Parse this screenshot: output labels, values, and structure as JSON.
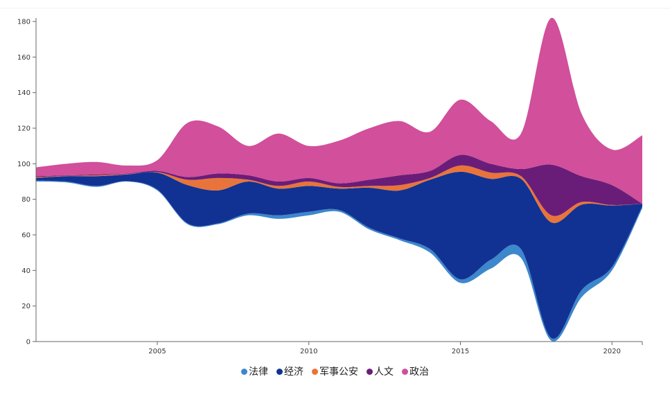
{
  "chart_data": {
    "type": "area",
    "subtype": "streamgraph",
    "title": "",
    "xlabel": "",
    "ylabel": "",
    "x": [
      2001,
      2002,
      2003,
      2004,
      2005,
      2006,
      2007,
      2008,
      2009,
      2010,
      2011,
      2012,
      2013,
      2014,
      2015,
      2016,
      2017,
      2018,
      2019,
      2020,
      2021
    ],
    "xlim": [
      2001,
      2021
    ],
    "ylim": [
      0,
      180
    ],
    "x_ticks": [
      "2005",
      "2010",
      "2015",
      "2020"
    ],
    "x_tick_values": [
      2005,
      2010,
      2015,
      2020
    ],
    "y_ticks": [
      "0",
      "20",
      "40",
      "60",
      "80",
      "100",
      "120",
      "140",
      "160",
      "180"
    ],
    "y_tick_values": [
      0,
      20,
      40,
      60,
      80,
      100,
      120,
      140,
      160,
      180
    ],
    "baseline": [
      90,
      89.5,
      87,
      90,
      85,
      66,
      66,
      71,
      69,
      71,
      73,
      63,
      57,
      50,
      33,
      41,
      47,
      0.5,
      25,
      40,
      75
    ],
    "series": [
      {
        "name": "法律",
        "color": "#3d87cc",
        "values": [
          0.5,
          0.5,
          0.5,
          0.2,
          0.5,
          0.5,
          0.5,
          1,
          2,
          2,
          1,
          1,
          1,
          2,
          2,
          5,
          5,
          1.5,
          4,
          2,
          1
        ]
      },
      {
        "name": "经济",
        "color": "#113293",
        "values": [
          1.5,
          3,
          5.5,
          3.8,
          9.5,
          21.5,
          18.5,
          18,
          15,
          14.5,
          12,
          22.5,
          27,
          39,
          60.5,
          45.5,
          39.5,
          65,
          48,
          34.5,
          1.5
        ]
      },
      {
        "name": "军事公安",
        "color": "#e8743b",
        "values": [
          0.5,
          0.2,
          0.5,
          0.2,
          0.3,
          3,
          7,
          1,
          1.5,
          2.5,
          1,
          1,
          3,
          1,
          3.5,
          3.5,
          1.5,
          4,
          1.5,
          0.3,
          0
        ]
      },
      {
        "name": "人文",
        "color": "#6a1d78",
        "values": [
          0.5,
          0.3,
          0.5,
          0.3,
          0.7,
          1.5,
          2.5,
          2.5,
          2.5,
          2,
          2,
          3.5,
          5.5,
          4,
          6,
          5,
          4,
          28.5,
          14.5,
          11.2,
          0
        ]
      },
      {
        "name": "政治",
        "color": "#d14f9b",
        "values": [
          5,
          6.5,
          7,
          4.5,
          6,
          30.5,
          26.5,
          16.5,
          27,
          18,
          24,
          29,
          30.5,
          22,
          31,
          24,
          20,
          82.5,
          35,
          20,
          38.5
        ]
      }
    ],
    "legend_position": "bottom",
    "grid": false
  }
}
